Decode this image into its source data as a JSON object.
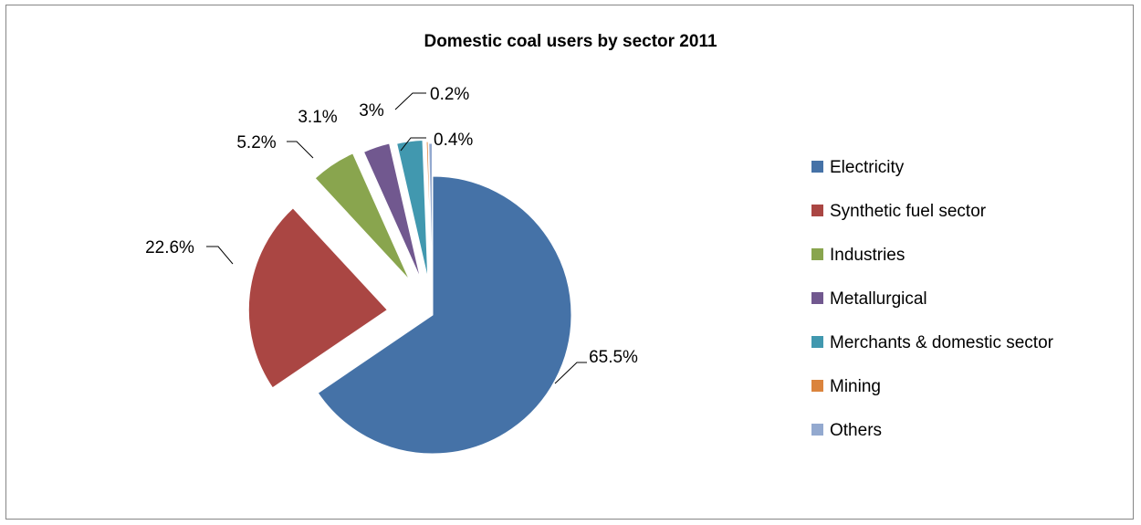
{
  "chart_data": {
    "type": "pie",
    "title": "Domestic coal users by sector 2011",
    "slices": [
      {
        "name": "Electricity",
        "value": 65.5,
        "label": "65.5%",
        "color": "#4572A7"
      },
      {
        "name": "Synthetic fuel sector",
        "value": 22.6,
        "label": "22.6%",
        "color": "#AA4643"
      },
      {
        "name": "Industries",
        "value": 5.2,
        "label": "5.2%",
        "color": "#89A54E"
      },
      {
        "name": "Metallurgical",
        "value": 3.1,
        "label": "3.1%",
        "color": "#71588F"
      },
      {
        "name": "Merchants & domestic sector",
        "value": 3.0,
        "label": "3%",
        "color": "#4198AF"
      },
      {
        "name": "Mining",
        "value": 0.2,
        "label": "0.2%",
        "color": "#DB843D"
      },
      {
        "name": "Others",
        "value": 0.4,
        "label": "0.4%",
        "color": "#93A9CF"
      }
    ],
    "legend_position": "right",
    "exploded": true
  }
}
